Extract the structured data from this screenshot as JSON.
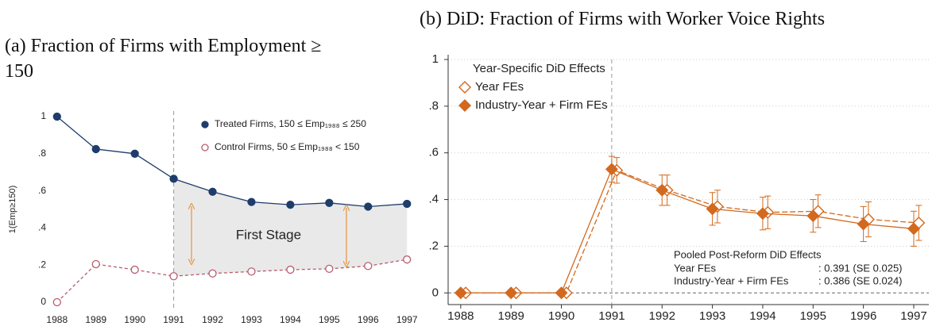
{
  "chart_data": [
    {
      "type": "line",
      "title": "(a) Fraction of Firms with Employment ≥ 150",
      "ylabel": "1(Emp≥150)",
      "x": [
        1988,
        1989,
        1990,
        1991,
        1992,
        1993,
        1994,
        1995,
        1996,
        1997
      ],
      "xlim": [
        1987.8,
        1997.2
      ],
      "ylim": [
        -0.03,
        1.03
      ],
      "yticks": [
        0,
        {
          "value": 0.2,
          "label": ".2"
        },
        {
          "value": 0.4,
          "label": ".4"
        },
        {
          "value": 0.6,
          "label": ".6"
        },
        {
          "value": 0.8,
          "label": ".8"
        },
        1
      ],
      "vline": 1991,
      "legend": "upper right",
      "annotation": "First Stage",
      "series": [
        {
          "name": "Treated Firms, 150 ≤ Emp₁₉₈₈ ≤ 250",
          "color": "#1f3d6b",
          "marker": "circle",
          "filled": true,
          "linestyle": "solid",
          "values": [
            1.0,
            0.825,
            0.8,
            0.665,
            0.595,
            0.54,
            0.525,
            0.535,
            0.515,
            0.53
          ]
        },
        {
          "name": "Control Firms,  50 ≤ Emp₁₉₈₈ < 150",
          "color": "#b85c6e",
          "marker": "circle",
          "filled": false,
          "linestyle": "dashed",
          "values": [
            0.0,
            0.205,
            0.175,
            0.14,
            0.155,
            0.165,
            0.175,
            0.18,
            0.195,
            0.23
          ]
        }
      ]
    },
    {
      "type": "line",
      "title": "(b) DiD: Fraction of Firms with Worker Voice Rights",
      "x": [
        1988,
        1989,
        1990,
        1991,
        1992,
        1993,
        1994,
        1995,
        1996,
        1997
      ],
      "xlim": [
        1987.75,
        1997.3
      ],
      "ylim": [
        -0.05,
        1.0
      ],
      "yticks": [
        0,
        {
          "value": 0.2,
          "label": ".2"
        },
        {
          "value": 0.4,
          "label": ".4"
        },
        {
          "value": 0.6,
          "label": ".6"
        },
        {
          "value": 0.8,
          "label": ".8"
        },
        1
      ],
      "grid": true,
      "vline": 1991,
      "legend": "upper left",
      "legend_title": "Year-Specific DiD Effects",
      "note_title": "Pooled Post-Reform DiD Effects",
      "note_rows": [
        [
          "Year FEs",
          ": 0.391 (SE 0.025)"
        ],
        [
          "Industry-Year + Firm FEs",
          ": 0.386 (SE 0.024)"
        ]
      ],
      "series": [
        {
          "name": "Year FEs",
          "color": "#d2691e",
          "marker": "diamond",
          "filled": false,
          "linestyle": "dashed",
          "values": [
            0,
            0,
            0,
            0.525,
            0.44,
            0.37,
            0.345,
            0.35,
            0.315,
            0.3
          ],
          "errors": [
            0,
            0,
            0,
            0.055,
            0.065,
            0.07,
            0.07,
            0.07,
            0.075,
            0.075
          ]
        },
        {
          "name": "Industry-Year + Firm FEs",
          "color": "#d2691e",
          "marker": "diamond",
          "filled": true,
          "linestyle": "solid",
          "values": [
            0,
            0,
            0,
            0.53,
            0.44,
            0.36,
            0.34,
            0.33,
            0.295,
            0.275
          ],
          "errors": [
            0,
            0,
            0,
            0.055,
            0.065,
            0.07,
            0.07,
            0.07,
            0.075,
            0.075
          ]
        }
      ]
    }
  ]
}
